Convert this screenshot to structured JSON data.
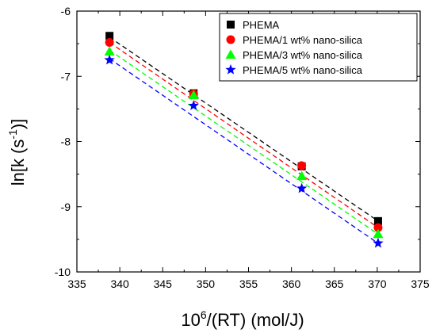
{
  "chart_data": {
    "type": "scatter",
    "xlabel": {
      "base": "10",
      "sup": "6",
      "rest": "/(RT) (mol/J)"
    },
    "ylabel": {
      "pre": "ln[k (s",
      "sup": "-1",
      "post": ")]"
    },
    "xlim": [
      335,
      375
    ],
    "ylim": [
      -10,
      -6
    ],
    "xticks": [
      335,
      340,
      345,
      350,
      355,
      360,
      365,
      370,
      375
    ],
    "yticks": [
      -10,
      -9,
      -8,
      -7,
      -6
    ],
    "legend": "top-right",
    "grid": false,
    "series": [
      {
        "name": "PHEMA",
        "marker": "square",
        "color": "#000000",
        "x": [
          338.8,
          348.6,
          361.2,
          370.1
        ],
        "y": [
          -6.38,
          -7.26,
          -8.38,
          -9.22
        ],
        "fit": [
          [
            338.8,
            -6.4
          ],
          [
            370.1,
            -9.22
          ]
        ]
      },
      {
        "name": "PHEMA/1 wt% nano-silica",
        "marker": "circle",
        "color": "#ff0000",
        "x": [
          338.8,
          348.6,
          361.2,
          370.1
        ],
        "y": [
          -6.48,
          -7.27,
          -8.37,
          -9.32
        ],
        "fit": [
          [
            338.8,
            -6.48
          ],
          [
            370.1,
            -9.32
          ]
        ]
      },
      {
        "name": "PHEMA/3 wt% nano-silica",
        "marker": "triangle",
        "color": "#00ff00",
        "x": [
          338.8,
          348.6,
          361.2,
          370.1
        ],
        "y": [
          -6.62,
          -7.29,
          -8.53,
          -9.42
        ],
        "fit": [
          [
            338.8,
            -6.6
          ],
          [
            370.1,
            -9.42
          ]
        ]
      },
      {
        "name": "PHEMA/5 wt% nano-silica",
        "marker": "star",
        "color": "#0000ff",
        "x": [
          338.8,
          348.6,
          361.2,
          370.1
        ],
        "y": [
          -6.75,
          -7.45,
          -8.72,
          -9.56
        ],
        "fit": [
          [
            338.8,
            -6.73
          ],
          [
            370.1,
            -9.56
          ]
        ]
      }
    ]
  }
}
